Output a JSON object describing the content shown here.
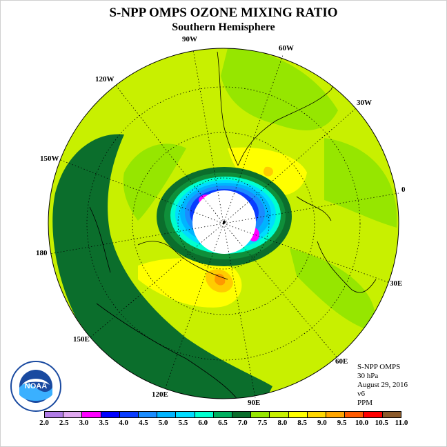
{
  "header": {
    "title": "S-NPP OMPS OZONE MIXING RATIO",
    "subtitle": "Southern Hemisphere"
  },
  "map": {
    "projection": "south-polar-stereographic",
    "longitude_labels": [
      "90W",
      "60W",
      "30W",
      "0",
      "30E",
      "60E",
      "90E",
      "120E",
      "150E",
      "180",
      "150W",
      "120W"
    ],
    "colors": {
      "ocean_fill": "#c8f000",
      "high_band": "#0b6e2c",
      "mid_green": "#0f8f3a",
      "polar_night": "#ffffff",
      "warm": "#ffff00",
      "warmer": "#ffcc00",
      "orange": "#ff9900"
    }
  },
  "info": {
    "instrument": "S-NPP OMPS",
    "level": "30 hPa",
    "date": "August 29, 2016",
    "version": "v6",
    "unit": "PPM"
  },
  "logo": {
    "icon": "noaa-logo",
    "text": "NOAA"
  },
  "colorbar": {
    "ticks": [
      "2.0",
      "2.5",
      "3.0",
      "3.5",
      "4.0",
      "4.5",
      "5.0",
      "5.5",
      "6.0",
      "6.5",
      "7.0",
      "7.5",
      "8.0",
      "8.5",
      "9.0",
      "9.5",
      "10.0",
      "10.5",
      "11.0"
    ],
    "colors": [
      "#b07ce6",
      "#e0a8f0",
      "#ff00ff",
      "#0000ff",
      "#0a3cff",
      "#1a8cff",
      "#00b4ff",
      "#00dcff",
      "#00ffd0",
      "#00b060",
      "#0b6e2c",
      "#96e600",
      "#c8f000",
      "#ffff00",
      "#ffd700",
      "#ffa500",
      "#ff5a00",
      "#ff0000",
      "#8b5a2b"
    ]
  }
}
